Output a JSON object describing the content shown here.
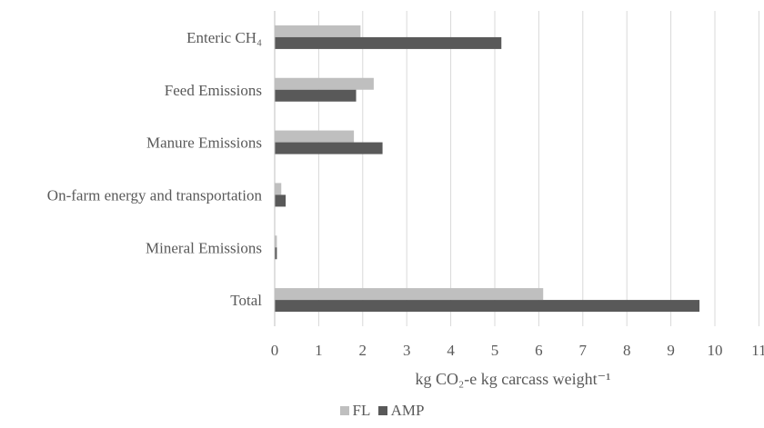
{
  "chart_data": {
    "type": "bar",
    "orientation": "horizontal",
    "categories": [
      "Enteric CH₄",
      "Feed Emissions",
      "Manure Emissions",
      "On-farm energy and transportation",
      "Mineral Emissions",
      "Total"
    ],
    "series": [
      {
        "name": "FL",
        "color": "#bfbfbf",
        "values": [
          1.95,
          2.25,
          1.8,
          0.15,
          0.05,
          6.1
        ]
      },
      {
        "name": "AMP",
        "color": "#595959",
        "values": [
          5.15,
          1.85,
          2.45,
          0.25,
          0.05,
          9.65
        ]
      }
    ],
    "xlabel": "kg CO₂-e kg carcass  weight⁻¹",
    "xlim": [
      0,
      11
    ],
    "xticks": [
      "0",
      "1",
      "2",
      "3",
      "4",
      "5",
      "6",
      "7",
      "8",
      "9",
      "10",
      "11"
    ],
    "grid": "vertical",
    "legend": "bottom"
  }
}
